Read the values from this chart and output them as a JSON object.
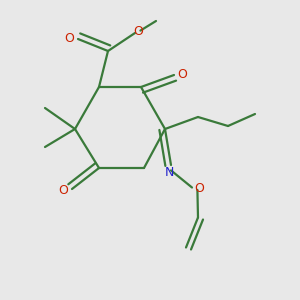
{
  "bg_color": "#e8e8e8",
  "bond_color": "#3a7a3a",
  "o_color": "#cc2200",
  "n_color": "#2222cc",
  "lw": 1.6,
  "dbo": 0.018,
  "figsize": [
    3.0,
    3.0
  ],
  "dpi": 100,
  "xlim": [
    0,
    1
  ],
  "ylim": [
    0,
    1
  ]
}
